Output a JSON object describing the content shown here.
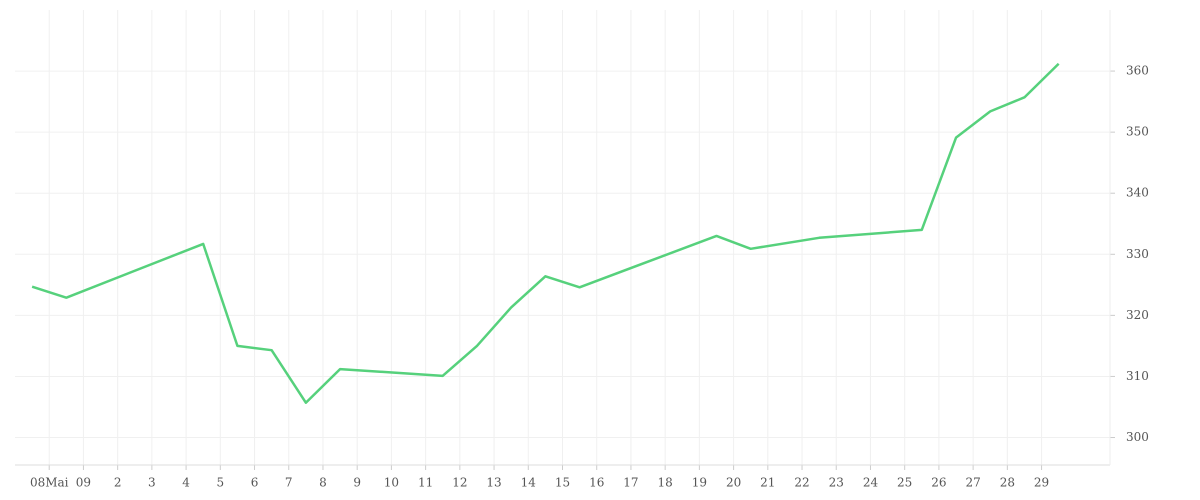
{
  "chart_data": {
    "type": "line",
    "x": [
      -0.5,
      0.5,
      4.5,
      5.5,
      6.5,
      7.5,
      8.5,
      11.5,
      12.5,
      13.5,
      14.5,
      15.5,
      19.5,
      20.5,
      22.5,
      25.5,
      26.5,
      27.5,
      28.5,
      29.5
    ],
    "series": [
      {
        "color": "#56d17c",
        "values": [
          324.7,
          322.9,
          331.7,
          315.0,
          314.3,
          305.7,
          311.2,
          310.1,
          315.0,
          321.3,
          326.4,
          324.6,
          333.0,
          330.9,
          332.7,
          334.0,
          349.1,
          353.4,
          355.7,
          361.2
        ]
      }
    ],
    "xlim": [
      -1,
      31
    ],
    "xticks": [
      {
        "value": 0,
        "label": "08Mai"
      },
      {
        "value": 1,
        "label": "09"
      },
      2,
      3,
      4,
      5,
      6,
      7,
      8,
      9,
      10,
      11,
      12,
      13,
      14,
      15,
      16,
      17,
      18,
      19,
      20,
      21,
      22,
      23,
      24,
      25,
      26,
      27,
      28,
      29
    ],
    "ylim": [
      295.5,
      370
    ],
    "yticks": [
      300,
      310,
      320,
      330,
      340,
      350,
      360
    ],
    "grid": true
  }
}
